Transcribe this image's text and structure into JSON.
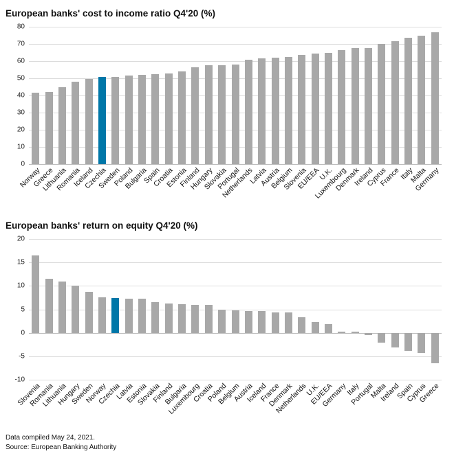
{
  "colors": {
    "bar": "#a8a8a8",
    "highlight": "#0077a8",
    "grid": "#dcdcdc",
    "zero_line": "#bdbdbd"
  },
  "footer": {
    "line1": "Data compiled May 24, 2021.",
    "line2": "Source: European Banking Authority"
  },
  "chart_data": [
    {
      "type": "bar",
      "title": "European banks' cost to income ratio Q4'20 (%)",
      "xlabel": "",
      "ylabel": "",
      "ylim": [
        0,
        80
      ],
      "ytick_step": 10,
      "grid": true,
      "legend": "none",
      "highlight_category": "Czechia",
      "categories": [
        "Norway",
        "Greece",
        "Lithuania",
        "Romania",
        "Iceland",
        "Czechia",
        "Sweden",
        "Poland",
        "Bulgaria",
        "Spain",
        "Croatia",
        "Estonia",
        "Finland",
        "Hungary",
        "Slovakia",
        "Portugal",
        "Netherlands",
        "Latvia",
        "Austria",
        "Belgium",
        "Slovenia",
        "EU/EEA",
        "U.K.",
        "Luxembourg",
        "Denmark",
        "Ireland",
        "Cyprus",
        "France",
        "Italy",
        "Malta",
        "Germany"
      ],
      "values": [
        41.5,
        42,
        45,
        48,
        49.5,
        51,
        51,
        51.5,
        52,
        52.5,
        53,
        54,
        56.5,
        57.5,
        57.5,
        58,
        61,
        61.5,
        62,
        62.5,
        63.5,
        64.5,
        65,
        66.5,
        67.5,
        67.5,
        70,
        71.5,
        73.5,
        75,
        77
      ]
    },
    {
      "type": "bar",
      "title": "European banks' return on equity Q4'20 (%)",
      "xlabel": "",
      "ylabel": "",
      "ylim": [
        -10,
        20
      ],
      "ytick_step": 5,
      "grid": true,
      "legend": "none",
      "highlight_category": "Czechia",
      "categories": [
        "Slovenia",
        "Romania",
        "Lithuania",
        "Hungary",
        "Sweden",
        "Norway",
        "Czechia",
        "Latvia",
        "Estonia",
        "Slovakia",
        "Finland",
        "Bulgaria",
        "Luxembourg",
        "Croatia",
        "Poland",
        "Belgium",
        "Austria",
        "Iceland",
        "France",
        "Denmark",
        "Netherlands",
        "U.K.",
        "EU/EEA",
        "Germany",
        "Italy",
        "Portugal",
        "Malta",
        "Ireland",
        "Spain",
        "Cyprus",
        "Greece"
      ],
      "values": [
        16.5,
        11.5,
        11,
        10,
        8.8,
        7.5,
        7.4,
        7.3,
        7.2,
        6.5,
        6.3,
        6.1,
        6,
        5.9,
        5,
        4.8,
        4.7,
        4.6,
        4.4,
        4.3,
        3.3,
        2.3,
        1.9,
        0.3,
        0.2,
        -0.5,
        -2.1,
        -3.1,
        -3.9,
        -4.3,
        -6.5
      ]
    }
  ]
}
